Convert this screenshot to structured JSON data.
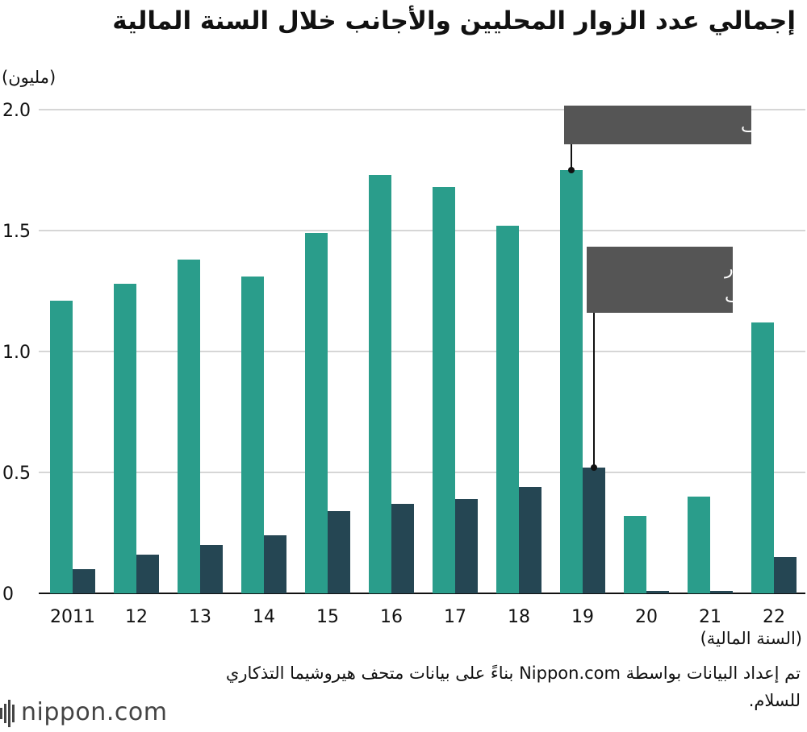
{
  "chart_data": {
    "type": "bar",
    "title": "إجمالي عدد الزوار المحليين والأجانب خلال السنة المالية",
    "ylabel": "(مليون)",
    "xlabel": "(السنة المالية)",
    "categories": [
      "2011",
      "12",
      "13",
      "14",
      "15",
      "16",
      "17",
      "18",
      "19",
      "20",
      "21",
      "22"
    ],
    "series": [
      {
        "name": "إجمالي زوار المتحف",
        "color": "#2a9d8b",
        "values": [
          1.21,
          1.28,
          1.38,
          1.31,
          1.49,
          1.73,
          1.68,
          1.52,
          1.75,
          0.32,
          0.4,
          1.12
        ]
      },
      {
        "name": "إجمالي الزوار الأجانب للمتحف",
        "color": "#254653",
        "values": [
          0.1,
          0.16,
          0.2,
          0.24,
          0.34,
          0.37,
          0.39,
          0.44,
          0.52,
          0.01,
          0.01,
          0.15
        ]
      }
    ],
    "yticks": [
      "0",
      "0.5",
      "1.0",
      "1.5",
      "2.0"
    ],
    "ylim": [
      0,
      2.0
    ],
    "grid": true,
    "callouts": {
      "total_line1": "إجمالي زوار المتحف",
      "foreign_line1": "إجمالي الزوار",
      "foreign_line2": "الأجانب للمتحف"
    }
  },
  "source_text": "تم إعداد البيانات بواسطة Nippon.com بناءً على بيانات متحف هيروشيما التذكاري للسلام.",
  "logo": {
    "text": "nippon",
    "suffix": ".com"
  }
}
